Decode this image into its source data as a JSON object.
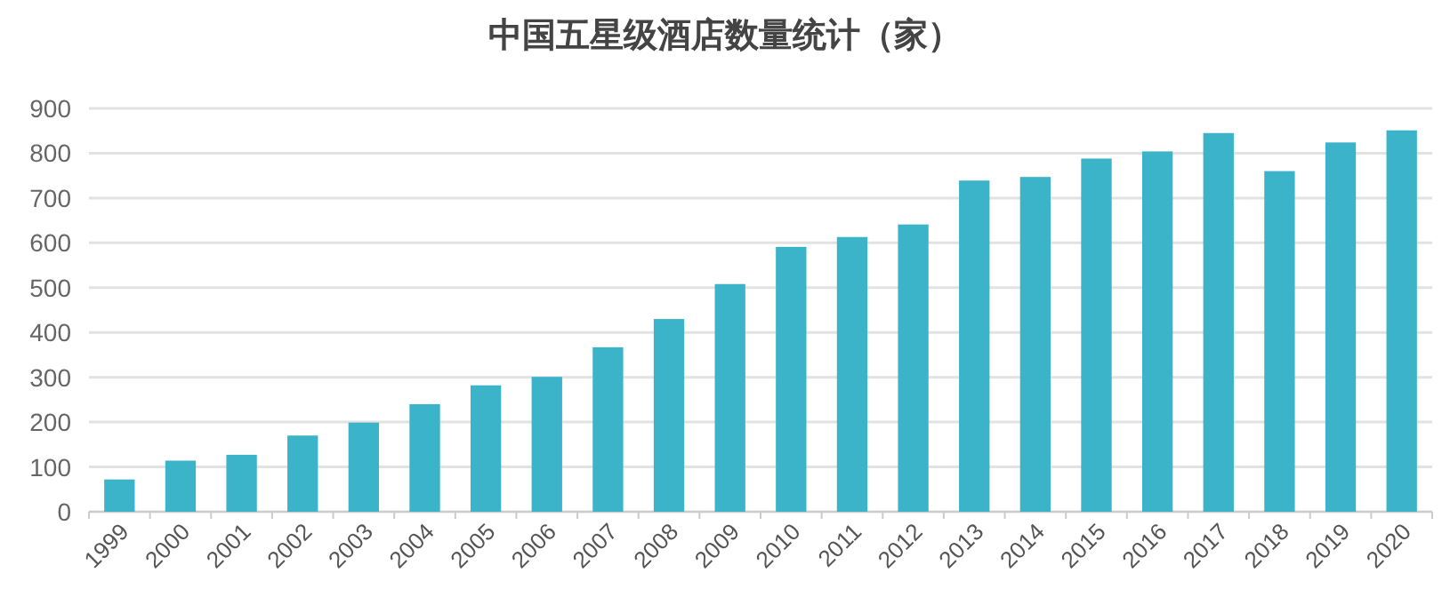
{
  "chart_data": {
    "type": "bar",
    "title": "中国五星级酒店数量统计（家）",
    "categories": [
      "1999",
      "2000",
      "2001",
      "2002",
      "2003",
      "2004",
      "2005",
      "2006",
      "2007",
      "2008",
      "2009",
      "2010",
      "2011",
      "2012",
      "2013",
      "2014",
      "2015",
      "2016",
      "2017",
      "2018",
      "2019",
      "2020"
    ],
    "values": [
      72,
      114,
      127,
      170,
      199,
      240,
      282,
      301,
      367,
      430,
      508,
      591,
      613,
      641,
      739,
      747,
      788,
      804,
      845,
      760,
      824,
      851
    ],
    "color": "#3bb3c8",
    "ylim": [
      0,
      900
    ],
    "yticks": [
      0,
      100,
      200,
      300,
      400,
      500,
      600,
      700,
      800,
      900
    ],
    "grid": "y",
    "legend": false
  }
}
